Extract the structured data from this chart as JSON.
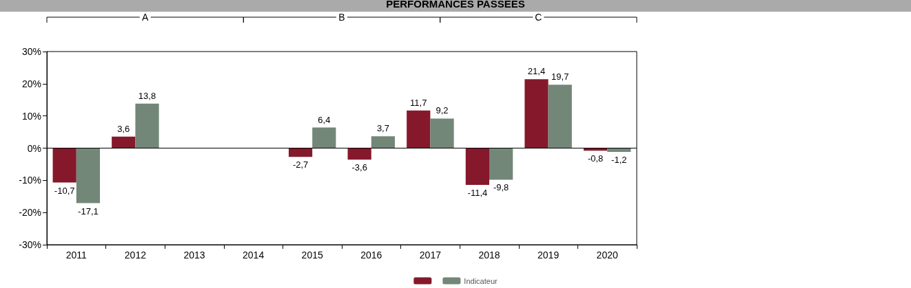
{
  "chart_data": {
    "type": "bar",
    "title": "PERFORMANCES PASSEES",
    "categories": [
      "2011",
      "2012",
      "2013",
      "2014",
      "2015",
      "2016",
      "2017",
      "2018",
      "2019",
      "2020"
    ],
    "series": [
      {
        "color": "#85192b",
        "values": [
          -10.7,
          3.6,
          null,
          null,
          -2.7,
          -3.6,
          11.7,
          -11.4,
          21.4,
          -0.8
        ],
        "value_labels": [
          "-10,7",
          "3,6",
          null,
          null,
          "-2,7",
          "-3,6",
          "11,7",
          "-11,4",
          "21,4",
          "-0,8"
        ]
      },
      {
        "name": "Indicateur",
        "color": "#738779",
        "values": [
          -17.1,
          13.8,
          null,
          null,
          6.4,
          3.7,
          9.2,
          -9.8,
          19.7,
          -1.2
        ],
        "value_labels": [
          "-17,1",
          "13,8",
          null,
          null,
          "6,4",
          "3,7",
          "9,2",
          "-9,8",
          "19,7",
          "-1,2"
        ]
      }
    ],
    "ylim": [
      -30,
      30
    ],
    "yticks": [
      {
        "value": -30,
        "label": "-30%"
      },
      {
        "value": -20,
        "label": "-20%"
      },
      {
        "value": -10,
        "label": "-10%"
      },
      {
        "value": 0,
        "label": "0%"
      },
      {
        "value": 10,
        "label": "10%"
      },
      {
        "value": 20,
        "label": "20%"
      },
      {
        "value": 30,
        "label": "30%"
      }
    ],
    "ref_lines": [
      {
        "axis": "y",
        "value": 0,
        "color": "#000000"
      }
    ],
    "annotations": [
      "A",
      "B",
      "C"
    ],
    "grid": false,
    "legend": "bottom"
  }
}
